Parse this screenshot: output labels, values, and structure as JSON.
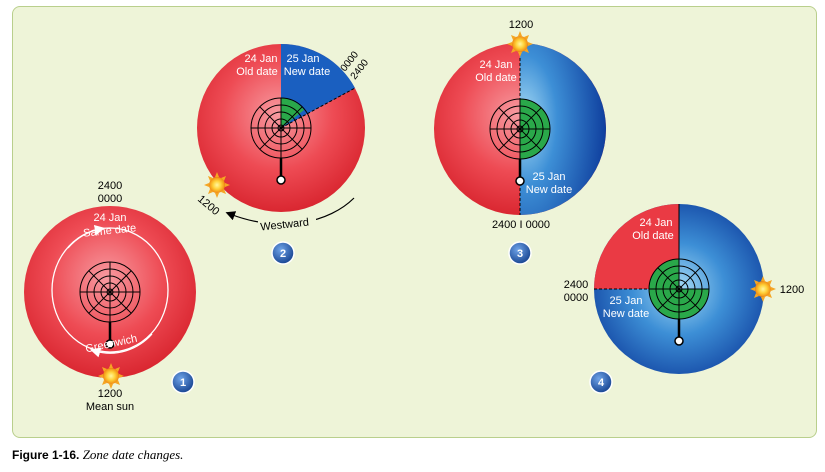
{
  "figure": {
    "caption_label": "Figure 1-16.",
    "caption_text": "Zone date changes."
  },
  "colors": {
    "panel_bg": "#eef4d8",
    "old_date_red": "#e8323c",
    "new_date_blue": "#1a5fc0",
    "globe_green": "#2aa84a",
    "badge_blue": "#1d4f9e",
    "sun_orange": "#f5a623"
  },
  "icons": [
    "sun-icon",
    "polar-grid-icon",
    "step-badge-icon",
    "westward-arrow-icon",
    "greenwich-arrow-icon"
  ],
  "steps": [
    {
      "number": "1",
      "top_time_a": "2400",
      "top_time_b": "0000",
      "date": "24 Jan",
      "date_note": "Same date",
      "meridian": "Greenwich",
      "sun_time": "1200",
      "sun_note": "Mean sun"
    },
    {
      "number": "2",
      "old_date": "24 Jan",
      "old_label": "Old date",
      "new_date": "25 Jan",
      "new_label": "New date",
      "boundary_a": "0000",
      "boundary_b": "2400",
      "sun_time": "1200",
      "direction": "Westward"
    },
    {
      "number": "3",
      "sun_time": "1200",
      "old_date": "24 Jan",
      "old_label": "Old date",
      "new_date": "25 Jan",
      "new_label": "New date",
      "bottom_time": "2400 I 0000"
    },
    {
      "number": "4",
      "old_date": "24 Jan",
      "old_label": "Old date",
      "new_date": "25 Jan",
      "new_label": "New date",
      "left_time_a": "2400",
      "left_time_b": "0000",
      "sun_time": "1200"
    }
  ]
}
